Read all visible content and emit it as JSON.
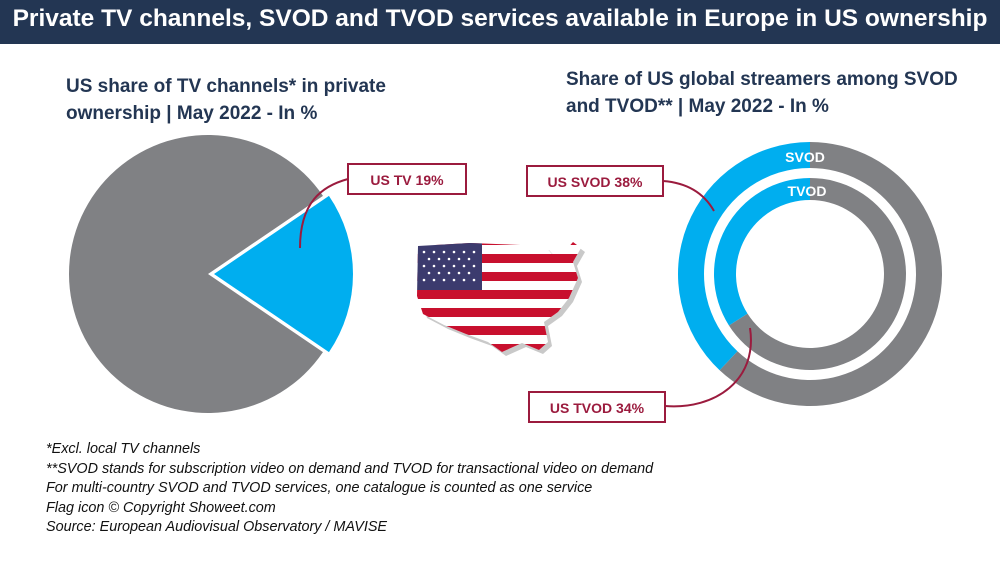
{
  "title": "Private TV channels, SVOD and TVOD services available in Europe in US ownership",
  "colors": {
    "title_bg": "#233653",
    "accent_us": "#00aeef",
    "other": "#808184",
    "callout_border": "#9b1b3e",
    "subtitle_text": "#233653"
  },
  "chart_data": [
    {
      "type": "pie",
      "title": "US share of TV channels* in private ownership | May 2022 - In %",
      "title_lines": [
        "US share of TV channels* in private",
        "ownership | May 2022 - In %"
      ],
      "slices": [
        {
          "label": "US TV",
          "value": 19
        },
        {
          "label": "",
          "value": 81
        }
      ],
      "callout": "US TV 19%"
    },
    {
      "type": "donut",
      "title": "Share of US global streamers among SVOD and TVOD** | May 2022 - In %",
      "title_lines": [
        "Share of US global streamers among SVOD",
        "and TVOD** | May 2022 - In %"
      ],
      "rings": [
        {
          "name": "SVOD",
          "us_share": 38,
          "callout": "US SVOD 38%"
        },
        {
          "name": "TVOD",
          "us_share": 34,
          "callout": "US TVOD 34%"
        }
      ]
    }
  ],
  "map_icon": "us-flag-map-icon",
  "footnotes": [
    "*Excl. local TV channels",
    "**SVOD stands for subscription video on demand and TVOD for transactional video on demand",
    "For multi-country SVOD and TVOD services, one catalogue is counted as one service",
    "Flag icon © Copyright Showeet.com",
    "Source: European Audiovisual Observatory / MAVISE"
  ]
}
